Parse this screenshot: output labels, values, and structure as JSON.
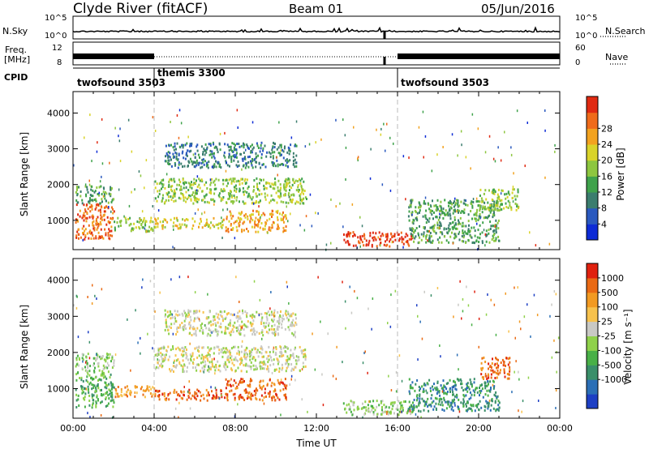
{
  "header": {
    "station": "Clyde River (fitACF)",
    "beam": "Beam 01",
    "date": "05/Jun/2016"
  },
  "summary_panels": {
    "nsky_label": "N.Sky",
    "nsearch_label": "N.Search",
    "freq_label_line1": "Freq.",
    "freq_label_line2": "[MHz]",
    "nave_label": "Nave",
    "cpid_label": "CPID",
    "nsky_ticks": [
      "10^5",
      "10^0"
    ],
    "nsearch_ticks": [
      "10^5",
      "10^0"
    ],
    "freq_ticks": [
      "12",
      "8"
    ],
    "nave_ticks": [
      "60",
      "0"
    ]
  },
  "cpid_segments": [
    {
      "name": "twofsound 3503",
      "start": 0.0,
      "end": 4.0
    },
    {
      "name": "themis 3300",
      "start": 4.0,
      "end": 16.0
    },
    {
      "name": "twofsound 3503",
      "start": 16.0,
      "end": 24.0
    }
  ],
  "chart_data": [
    {
      "type": "heatmap",
      "title": "",
      "xlabel": "",
      "ylabel": "Slant Range [km]",
      "xlim": [
        0,
        24
      ],
      "ylim": [
        180,
        4600
      ],
      "y_ticks": [
        "1000",
        "2000",
        "3000",
        "4000"
      ],
      "colorbar": {
        "label": "Power [dB]",
        "ticks": [
          "4",
          "8",
          "12",
          "16",
          "20",
          "24",
          "28"
        ],
        "colors": [
          "#0d2bd6",
          "#2a59bf",
          "#3b7d6e",
          "#3fa24b",
          "#8dc63f",
          "#d9d32a",
          "#f2a21f",
          "#ef6b1a",
          "#e02a12"
        ]
      },
      "echo_regions": [
        {
          "t0": 0.1,
          "t1": 2.0,
          "r0": 500,
          "r1": 1500,
          "level": 7
        },
        {
          "t0": 0.1,
          "t1": 2.0,
          "r0": 1500,
          "r1": 2000,
          "level": 3
        },
        {
          "t0": 2.0,
          "t1": 4.0,
          "r0": 700,
          "r1": 1100,
          "level": 4
        },
        {
          "t0": 4.0,
          "t1": 7.5,
          "r0": 800,
          "r1": 1100,
          "level": 5
        },
        {
          "t0": 7.5,
          "t1": 10.5,
          "r0": 700,
          "r1": 1300,
          "level": 6
        },
        {
          "t0": 4.0,
          "t1": 11.5,
          "r0": 1500,
          "r1": 2200,
          "level": 4
        },
        {
          "t0": 4.5,
          "t1": 11.0,
          "r0": 2500,
          "r1": 3200,
          "level": 2
        },
        {
          "t0": 13.3,
          "t1": 16.8,
          "r0": 300,
          "r1": 700,
          "level": 8
        },
        {
          "t0": 16.5,
          "t1": 21.0,
          "r0": 400,
          "r1": 1600,
          "level": 3
        },
        {
          "t0": 20.0,
          "t1": 22.0,
          "r0": 1300,
          "r1": 1900,
          "level": 4
        }
      ]
    },
    {
      "type": "heatmap",
      "title": "",
      "xlabel": "Time UT",
      "ylabel": "Slant Range [km]",
      "xlim": [
        0,
        24
      ],
      "ylim": [
        180,
        4600
      ],
      "x_ticks": [
        "00:00",
        "04:00",
        "08:00",
        "12:00",
        "16:00",
        "20:00",
        "00:00"
      ],
      "y_ticks": [
        "1000",
        "2000",
        "3000",
        "4000"
      ],
      "colorbar": {
        "label": "Velocity [m s⁻¹]",
        "ticks": [
          "1000",
          "500",
          "100",
          "25",
          "-25",
          "-100",
          "-500",
          "-1000"
        ],
        "colors": [
          "#1d3fc4",
          "#2b6fb6",
          "#3a8f6a",
          "#49b047",
          "#8fd14a",
          "#c9c9c4",
          "#f7c24d",
          "#f29a22",
          "#ea6a14",
          "#e0210f"
        ]
      },
      "echo_regions": [
        {
          "t0": 0.1,
          "t1": 2.0,
          "r0": 500,
          "r1": 1500,
          "level": 3
        },
        {
          "t0": 0.1,
          "t1": 2.0,
          "r0": 1500,
          "r1": 2000,
          "level": 4
        },
        {
          "t0": 2.0,
          "t1": 4.0,
          "r0": 800,
          "r1": 1100,
          "level": 7
        },
        {
          "t0": 4.0,
          "t1": 7.5,
          "r0": 700,
          "r1": 1000,
          "level": 8
        },
        {
          "t0": 7.5,
          "t1": 10.5,
          "r0": 700,
          "r1": 1300,
          "level": 8
        },
        {
          "t0": 4.0,
          "t1": 11.5,
          "r0": 1500,
          "r1": 2200,
          "level": 5
        },
        {
          "t0": 4.5,
          "t1": 11.0,
          "r0": 2500,
          "r1": 3200,
          "level": 5
        },
        {
          "t0": 13.3,
          "t1": 16.8,
          "r0": 300,
          "r1": 700,
          "level": 4
        },
        {
          "t0": 16.5,
          "t1": 21.0,
          "r0": 400,
          "r1": 1300,
          "level": 2
        },
        {
          "t0": 20.0,
          "t1": 21.5,
          "r0": 1300,
          "r1": 1900,
          "level": 8
        }
      ]
    }
  ]
}
